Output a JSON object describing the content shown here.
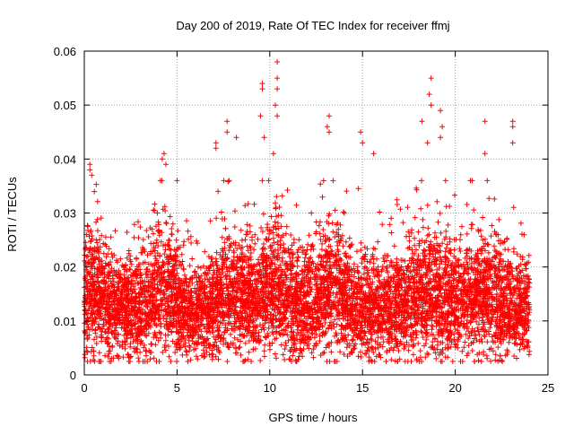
{
  "colors": {
    "points": "#ff0000",
    "grid": "#a0a0a0",
    "axis": "#000000",
    "background": "#ffffff"
  },
  "chart_data": {
    "type": "scatter",
    "title": "Day 200 of 2019, Rate Of TEC Index for receiver ffmj",
    "xlabel": "GPS time / hours",
    "ylabel": "ROTI / TECUs",
    "xlim": [
      0,
      25
    ],
    "ylim": [
      0,
      0.06
    ],
    "xticks": [
      0,
      5,
      10,
      15,
      20,
      25
    ],
    "xtick_labels": [
      "0",
      "5",
      "10",
      "15",
      "20",
      "25"
    ],
    "yticks": [
      0,
      0.01,
      0.02,
      0.03,
      0.04,
      0.05,
      0.06
    ],
    "ytick_labels": [
      "0",
      "0.01",
      "0.02",
      "0.03",
      "0.04",
      "0.05",
      "0.06"
    ],
    "grid": true,
    "marker": "plus",
    "data_x_range": [
      0,
      24
    ],
    "typical_band": [
      0.005,
      0.025
    ],
    "outliers": [
      {
        "x": 0.3,
        "y": 0.039
      },
      {
        "x": 0.3,
        "y": 0.038
      },
      {
        "x": 0.4,
        "y": 0.037
      },
      {
        "x": 4.3,
        "y": 0.041
      },
      {
        "x": 4.2,
        "y": 0.04
      },
      {
        "x": 4.4,
        "y": 0.039
      },
      {
        "x": 7.1,
        "y": 0.043
      },
      {
        "x": 7.1,
        "y": 0.042
      },
      {
        "x": 7.7,
        "y": 0.047
      },
      {
        "x": 7.7,
        "y": 0.045
      },
      {
        "x": 8.2,
        "y": 0.044
      },
      {
        "x": 9.5,
        "y": 0.048
      },
      {
        "x": 9.6,
        "y": 0.054
      },
      {
        "x": 9.6,
        "y": 0.053
      },
      {
        "x": 9.7,
        "y": 0.044
      },
      {
        "x": 10.3,
        "y": 0.05
      },
      {
        "x": 10.4,
        "y": 0.058
      },
      {
        "x": 10.4,
        "y": 0.055
      },
      {
        "x": 10.4,
        "y": 0.053
      },
      {
        "x": 10.4,
        "y": 0.048
      },
      {
        "x": 10.2,
        "y": 0.041
      },
      {
        "x": 13.2,
        "y": 0.048
      },
      {
        "x": 13.1,
        "y": 0.046
      },
      {
        "x": 13.2,
        "y": 0.045
      },
      {
        "x": 14.9,
        "y": 0.045
      },
      {
        "x": 15.0,
        "y": 0.043
      },
      {
        "x": 15.6,
        "y": 0.041
      },
      {
        "x": 18.7,
        "y": 0.055
      },
      {
        "x": 18.6,
        "y": 0.052
      },
      {
        "x": 18.7,
        "y": 0.05
      },
      {
        "x": 19.2,
        "y": 0.049
      },
      {
        "x": 19.3,
        "y": 0.046
      },
      {
        "x": 19.2,
        "y": 0.044
      },
      {
        "x": 18.2,
        "y": 0.047
      },
      {
        "x": 18.5,
        "y": 0.043
      },
      {
        "x": 21.6,
        "y": 0.047
      },
      {
        "x": 21.6,
        "y": 0.041
      },
      {
        "x": 23.1,
        "y": 0.047
      },
      {
        "x": 23.1,
        "y": 0.046
      },
      {
        "x": 23.1,
        "y": 0.043
      }
    ]
  }
}
